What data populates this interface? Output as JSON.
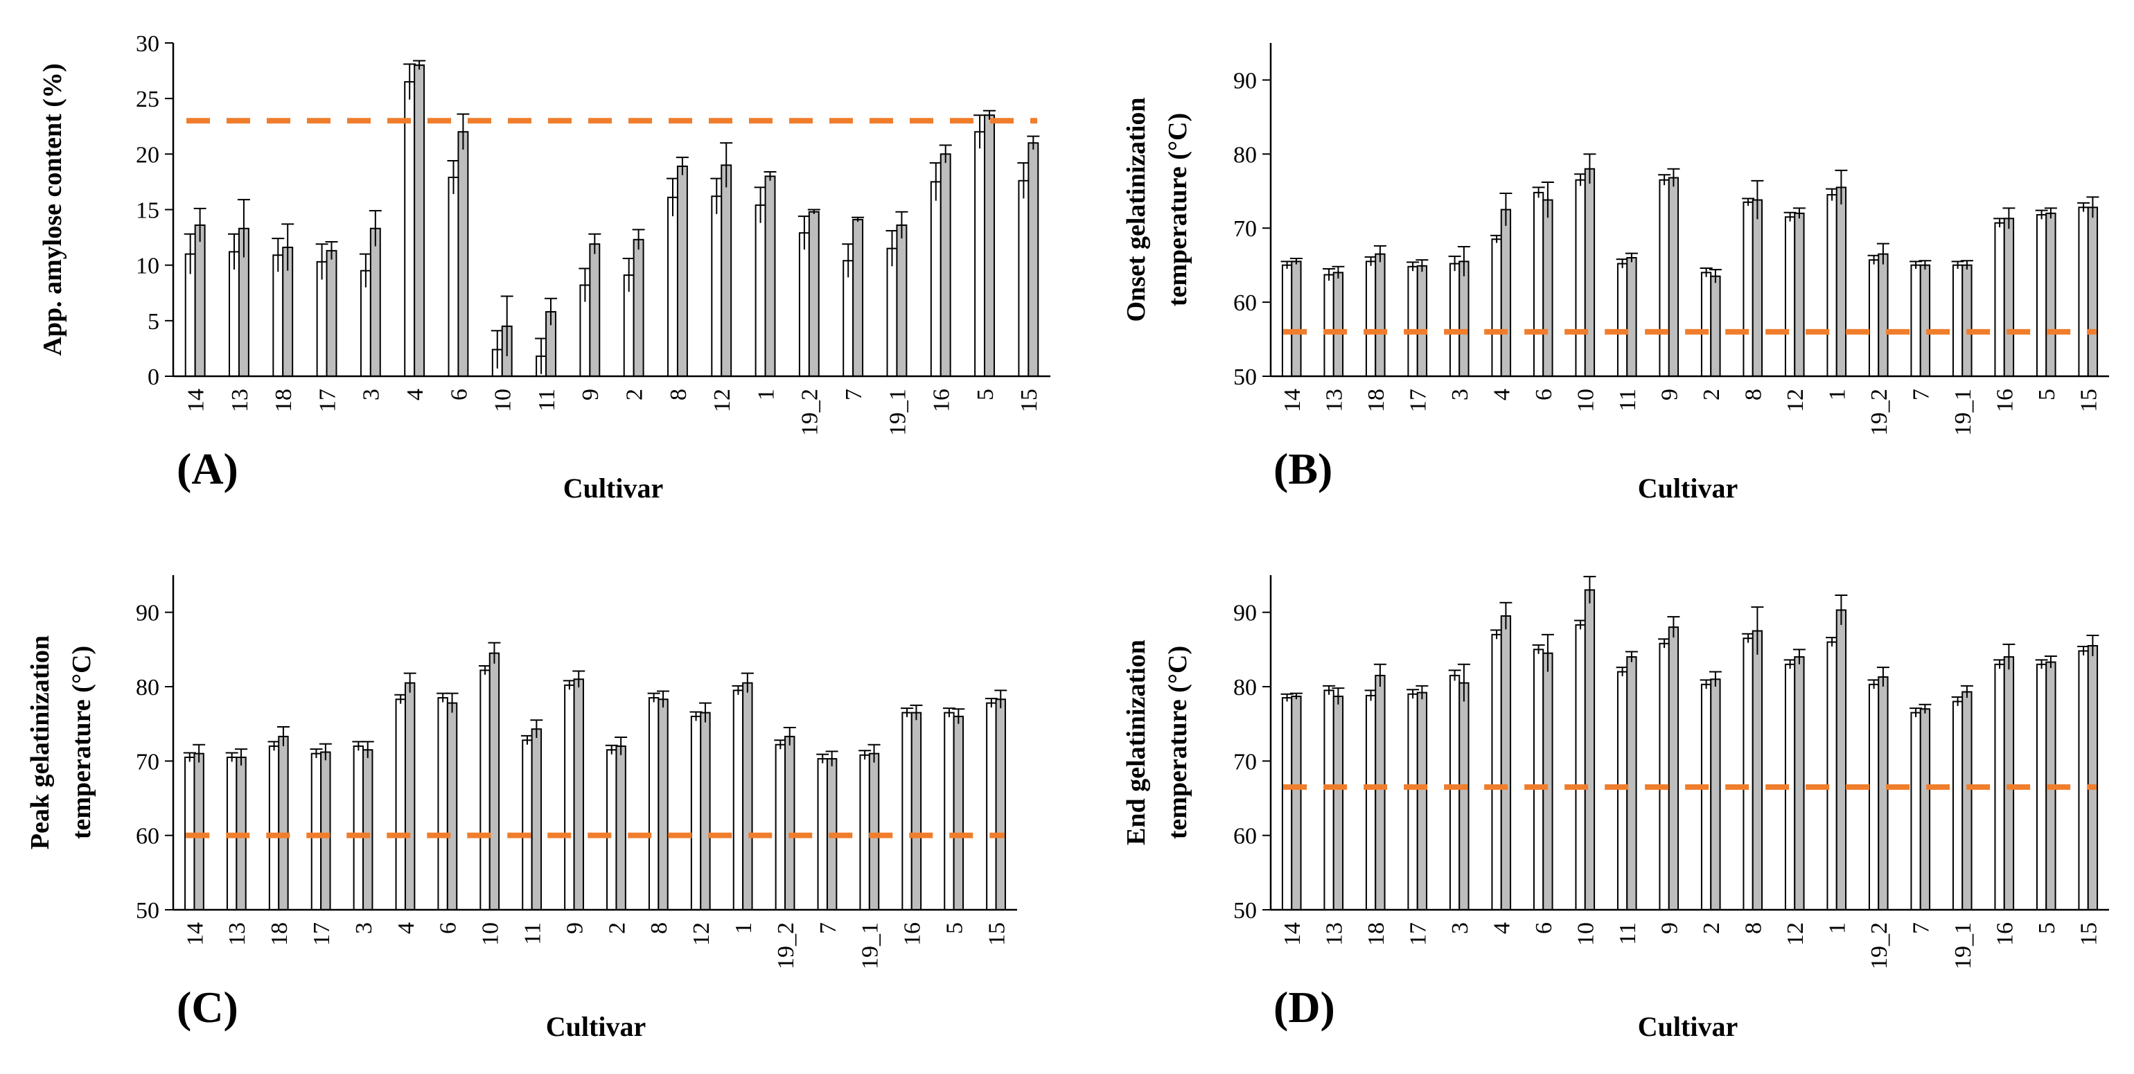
{
  "categories": [
    "14",
    "13",
    "18",
    "17",
    "3",
    "4",
    "6",
    "10",
    "11",
    "9",
    "2",
    "8",
    "12",
    "1",
    "19_2",
    "7",
    "19_1",
    "16",
    "5",
    "15"
  ],
  "colors": {
    "axis": "#000000",
    "bar_left": "#ffffff",
    "bar_right": "#bdbdbd",
    "reference_line": "#f07d2c"
  },
  "chart_data": [
    {
      "panel": "(A)",
      "type": "bar",
      "xlabel": "Cultivar",
      "ylabel": "App. amylose content (%)",
      "ylim": [
        0,
        30
      ],
      "yticks": [
        0,
        5,
        10,
        15,
        20,
        25,
        30
      ],
      "ytick_labels": [
        "0",
        "5",
        "10",
        "15",
        "20",
        "25",
        "30"
      ],
      "reference_line": 23,
      "categories": [
        "14",
        "13",
        "18",
        "17",
        "3",
        "4",
        "6",
        "10",
        "11",
        "9",
        "2",
        "8",
        "12",
        "1",
        "19_2",
        "7",
        "19_1",
        "16",
        "5",
        "15"
      ],
      "series": [
        {
          "values": [
            11.0,
            11.2,
            10.9,
            10.3,
            9.5,
            26.5,
            17.9,
            2.4,
            1.8,
            8.2,
            9.1,
            16.1,
            16.2,
            15.4,
            12.9,
            10.4,
            11.5,
            17.5,
            22.0,
            17.6
          ],
          "errors": [
            1.8,
            1.6,
            1.5,
            1.6,
            1.5,
            1.6,
            1.5,
            1.7,
            1.6,
            1.5,
            1.5,
            1.7,
            1.6,
            1.6,
            1.5,
            1.5,
            1.6,
            1.7,
            1.5,
            1.6
          ]
        },
        {
          "values": [
            13.6,
            13.3,
            11.6,
            11.3,
            13.3,
            28.0,
            22.0,
            4.5,
            5.8,
            11.9,
            12.3,
            18.9,
            19.0,
            18.0,
            14.8,
            14.1,
            13.6,
            20.0,
            23.5,
            21.0
          ],
          "errors": [
            1.5,
            2.6,
            2.1,
            0.8,
            1.6,
            0.4,
            1.6,
            2.7,
            1.2,
            0.9,
            0.9,
            0.8,
            2.0,
            0.4,
            0.2,
            0.2,
            1.2,
            0.8,
            0.4,
            0.6
          ]
        }
      ]
    },
    {
      "panel": "(B)",
      "type": "bar",
      "xlabel": "Cultivar",
      "ylabel": [
        "Onset gelatinization",
        "temperature (°C)"
      ],
      "ylim": [
        50,
        95
      ],
      "yticks": [
        50,
        60,
        70,
        80,
        90
      ],
      "ytick_labels": [
        "50",
        "60",
        "70",
        "80",
        "90"
      ],
      "reference_line": 56,
      "categories": [
        "14",
        "13",
        "18",
        "17",
        "3",
        "4",
        "6",
        "10",
        "11",
        "9",
        "2",
        "8",
        "12",
        "1",
        "19_2",
        "7",
        "19_1",
        "16",
        "5",
        "15"
      ],
      "series": [
        {
          "values": [
            65.0,
            63.7,
            65.5,
            64.8,
            65.2,
            68.5,
            74.8,
            76.5,
            65.2,
            76.5,
            64.0,
            73.5,
            71.5,
            74.5,
            65.7,
            65.0,
            65.0,
            70.7,
            71.8,
            72.8
          ],
          "errors": [
            0.5,
            0.8,
            0.6,
            0.6,
            1.0,
            0.5,
            0.7,
            0.8,
            0.6,
            0.7,
            0.6,
            0.5,
            0.6,
            0.8,
            0.6,
            0.5,
            0.5,
            0.6,
            0.6,
            0.6
          ]
        },
        {
          "values": [
            65.5,
            64.0,
            66.5,
            64.9,
            65.5,
            72.5,
            73.8,
            78.0,
            66.0,
            76.8,
            63.5,
            73.8,
            72.0,
            75.5,
            66.5,
            65.0,
            65.0,
            71.3,
            72.0,
            72.8
          ],
          "errors": [
            0.4,
            0.8,
            1.1,
            0.8,
            2.0,
            2.2,
            2.4,
            2.0,
            0.6,
            1.2,
            0.9,
            2.6,
            0.7,
            2.3,
            1.4,
            0.6,
            0.6,
            1.4,
            0.7,
            1.4
          ]
        }
      ]
    },
    {
      "panel": "(C)",
      "type": "bar",
      "xlabel": "Cultivar",
      "ylabel": [
        "Peak gelatinization",
        "temperature (°C)"
      ],
      "ylim": [
        50,
        95
      ],
      "yticks": [
        50,
        60,
        70,
        80,
        90
      ],
      "ytick_labels": [
        "50",
        "60",
        "70",
        "80",
        "90"
      ],
      "reference_line": 60,
      "categories": [
        "14",
        "13",
        "18",
        "17",
        "3",
        "4",
        "6",
        "10",
        "11",
        "9",
        "2",
        "8",
        "12",
        "1",
        "19_2",
        "7",
        "19_1",
        "16",
        "5",
        "15"
      ],
      "series": [
        {
          "values": [
            70.5,
            70.5,
            72.0,
            71.0,
            72.0,
            78.3,
            78.5,
            82.2,
            72.8,
            80.2,
            71.5,
            78.5,
            76.0,
            79.5,
            72.2,
            70.3,
            70.8,
            76.5,
            76.5,
            77.8
          ],
          "errors": [
            0.6,
            0.6,
            0.6,
            0.6,
            0.6,
            0.6,
            0.6,
            0.6,
            0.6,
            0.6,
            0.6,
            0.6,
            0.6,
            0.6,
            0.6,
            0.6,
            0.6,
            0.6,
            0.6,
            0.6
          ]
        },
        {
          "values": [
            71.0,
            70.5,
            73.3,
            71.2,
            71.5,
            80.5,
            77.8,
            84.5,
            74.3,
            81.0,
            72.0,
            78.3,
            76.5,
            80.5,
            73.3,
            70.3,
            71.0,
            76.5,
            76.0,
            78.3
          ],
          "errors": [
            1.2,
            1.1,
            1.3,
            1.1,
            1.1,
            1.3,
            1.3,
            1.4,
            1.2,
            1.1,
            1.2,
            1.1,
            1.3,
            1.3,
            1.2,
            1.0,
            1.2,
            1.0,
            1.0,
            1.2
          ]
        }
      ]
    },
    {
      "panel": "(D)",
      "type": "bar",
      "xlabel": "Cultivar",
      "ylabel": [
        "End gelatinization",
        "temperature (°C)"
      ],
      "ylim": [
        50,
        95
      ],
      "yticks": [
        50,
        60,
        70,
        80,
        90
      ],
      "ytick_labels": [
        "50",
        "60",
        "70",
        "80",
        "90"
      ],
      "reference_line": 66.5,
      "categories": [
        "14",
        "13",
        "18",
        "17",
        "3",
        "4",
        "6",
        "10",
        "11",
        "9",
        "2",
        "8",
        "12",
        "1",
        "19_2",
        "7",
        "19_1",
        "16",
        "5",
        "15"
      ],
      "series": [
        {
          "values": [
            78.5,
            79.5,
            78.8,
            79.0,
            81.5,
            87.0,
            85.0,
            88.3,
            82.0,
            85.8,
            80.3,
            86.5,
            83.0,
            86.0,
            80.3,
            76.5,
            78.0,
            83.0,
            83.0,
            84.8
          ],
          "errors": [
            0.5,
            0.6,
            0.7,
            0.6,
            0.7,
            0.6,
            0.6,
            0.6,
            0.6,
            0.6,
            0.6,
            0.6,
            0.6,
            0.6,
            0.6,
            0.6,
            0.6,
            0.6,
            0.6,
            0.6
          ]
        },
        {
          "values": [
            78.7,
            78.7,
            81.5,
            79.2,
            80.5,
            89.5,
            84.5,
            93.0,
            84.0,
            88.0,
            81.0,
            87.5,
            84.0,
            90.3,
            81.3,
            77.0,
            79.3,
            84.0,
            83.3,
            85.5
          ],
          "errors": [
            0.4,
            1.1,
            1.5,
            0.9,
            2.5,
            1.8,
            2.5,
            1.8,
            0.7,
            1.4,
            1.0,
            3.2,
            1.0,
            2.0,
            1.3,
            0.6,
            0.8,
            1.7,
            0.8,
            1.4
          ]
        }
      ]
    }
  ]
}
